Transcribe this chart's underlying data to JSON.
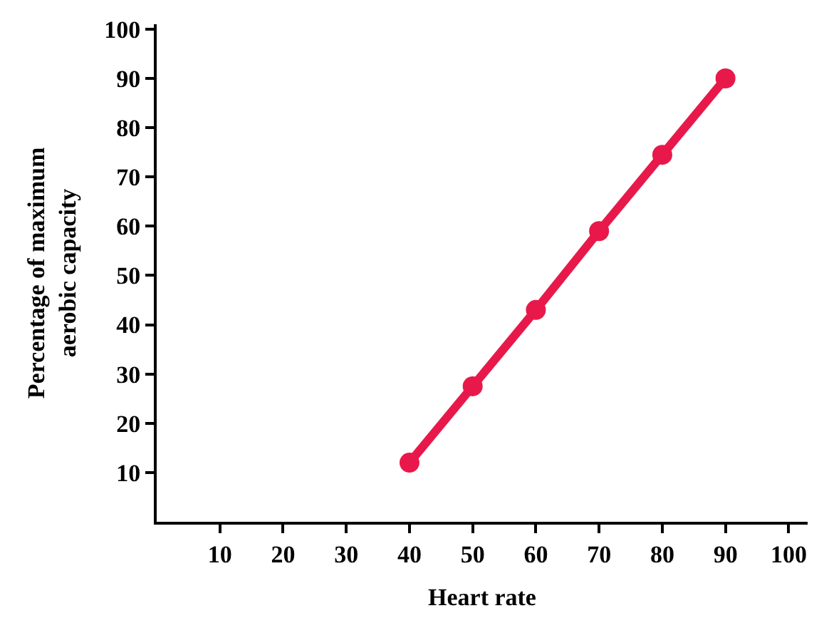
{
  "chart_data": {
    "type": "line",
    "xlabel": "Heart rate",
    "ylabel": "Percentage of maximum\naerobic capacity",
    "x": [
      40,
      50,
      60,
      70,
      80,
      90
    ],
    "series": [
      {
        "color": "#e8194a",
        "values": [
          12,
          27.5,
          43,
          59,
          74.5,
          90
        ]
      }
    ],
    "xlim": [
      0,
      103
    ],
    "ylim": [
      0,
      101
    ],
    "xticks": [
      10,
      20,
      30,
      40,
      50,
      60,
      70,
      80,
      90,
      100
    ],
    "yticks": [
      10,
      20,
      30,
      40,
      50,
      60,
      70,
      80,
      90,
      100
    ],
    "legend": false,
    "marker": "circle",
    "line_style": "solid"
  }
}
